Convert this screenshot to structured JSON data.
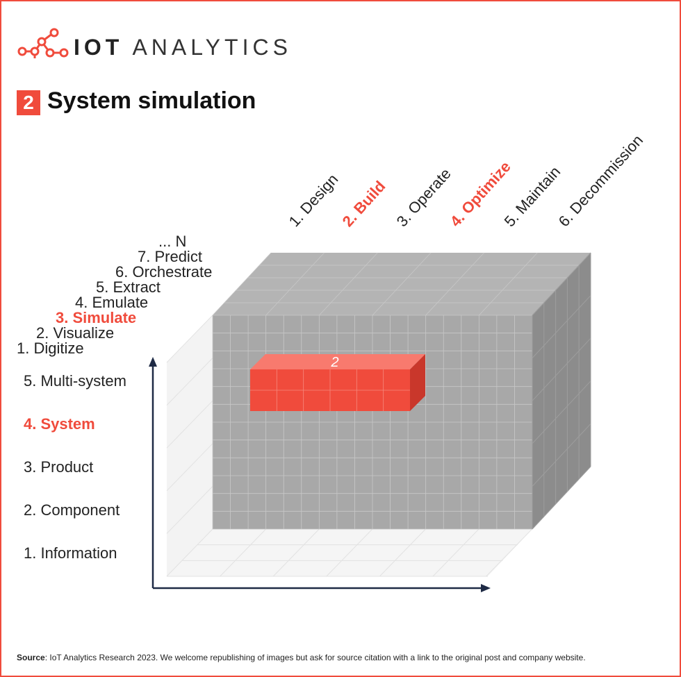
{
  "brand": {
    "name_bold": "IOT",
    "name_light": "ANALYTICS"
  },
  "title": {
    "number": "2",
    "text": "System simulation"
  },
  "lifecycle_axis": {
    "items": [
      {
        "label": "1. Design",
        "highlight": false
      },
      {
        "label": "2. Build",
        "highlight": true
      },
      {
        "label": "3. Operate",
        "highlight": false
      },
      {
        "label": "4. Optimize",
        "highlight": true
      },
      {
        "label": "5. Maintain",
        "highlight": false
      },
      {
        "label": "6. Decommission",
        "highlight": false
      }
    ]
  },
  "capability_axis": {
    "items": [
      {
        "label": "... N",
        "highlight": false
      },
      {
        "label": "7. Predict",
        "highlight": false
      },
      {
        "label": "6. Orchestrate",
        "highlight": false
      },
      {
        "label": "5. Extract",
        "highlight": false
      },
      {
        "label": "4. Emulate",
        "highlight": false
      },
      {
        "label": "3. Simulate",
        "highlight": true
      },
      {
        "label": "2. Visualize",
        "highlight": false
      },
      {
        "label": "1. Digitize",
        "highlight": false
      }
    ]
  },
  "hierarchy_axis": {
    "items": [
      {
        "label": "5. Multi-system",
        "highlight": false
      },
      {
        "label": "4. System",
        "highlight": true
      },
      {
        "label": "3. Product",
        "highlight": false
      },
      {
        "label": "2. Component",
        "highlight": false
      },
      {
        "label": "1. Information",
        "highlight": false
      }
    ]
  },
  "highlight_block": {
    "label": "2"
  },
  "colors": {
    "accent": "#f04b3c",
    "cube_front": "#a8a8a8",
    "cube_top": "#b4b4b4",
    "cube_side": "#8c8c8c"
  },
  "source": {
    "prefix": "Source",
    "text": ": IoT Analytics Research 2023. We welcome republishing of images but ask for source citation with a link to the original post and company website."
  }
}
